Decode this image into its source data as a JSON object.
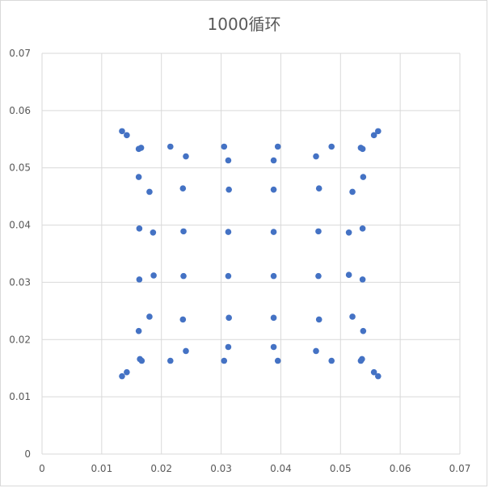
{
  "chart_data": {
    "type": "scatter",
    "title": "1000循环",
    "xlabel": "",
    "ylabel": "",
    "xlim": [
      0,
      0.07
    ],
    "ylim": [
      0,
      0.07
    ],
    "x_ticks": [
      "0",
      "0.01",
      "0.02",
      "0.03",
      "0.04",
      "0.05",
      "0.06",
      "0.07"
    ],
    "y_ticks": [
      "0",
      "0.01",
      "0.02",
      "0.03",
      "0.04",
      "0.05",
      "0.06",
      "0.07"
    ],
    "grid": true,
    "legend": "none",
    "marker_color": "#4472c4",
    "points": [
      [
        0.0134,
        0.0564
      ],
      [
        0.0142,
        0.0557
      ],
      [
        0.0162,
        0.0533
      ],
      [
        0.0166,
        0.0535
      ],
      [
        0.0215,
        0.0537
      ],
      [
        0.0241,
        0.052
      ],
      [
        0.0305,
        0.0537
      ],
      [
        0.0312,
        0.0513
      ],
      [
        0.0388,
        0.0513
      ],
      [
        0.0395,
        0.0537
      ],
      [
        0.0459,
        0.052
      ],
      [
        0.0485,
        0.0537
      ],
      [
        0.0534,
        0.0535
      ],
      [
        0.0537,
        0.0533
      ],
      [
        0.0556,
        0.0557
      ],
      [
        0.0563,
        0.0564
      ],
      [
        0.0162,
        0.0484
      ],
      [
        0.018,
        0.0458
      ],
      [
        0.0236,
        0.0464
      ],
      [
        0.0313,
        0.0462
      ],
      [
        0.0388,
        0.0462
      ],
      [
        0.0464,
        0.0464
      ],
      [
        0.052,
        0.0458
      ],
      [
        0.0538,
        0.0484
      ],
      [
        0.0163,
        0.0394
      ],
      [
        0.0186,
        0.0387
      ],
      [
        0.0237,
        0.0389
      ],
      [
        0.0312,
        0.0388
      ],
      [
        0.0388,
        0.0388
      ],
      [
        0.0463,
        0.0389
      ],
      [
        0.0514,
        0.0387
      ],
      [
        0.0537,
        0.0394
      ],
      [
        0.0163,
        0.0305
      ],
      [
        0.0187,
        0.0312
      ],
      [
        0.0237,
        0.0311
      ],
      [
        0.0312,
        0.0311
      ],
      [
        0.0388,
        0.0311
      ],
      [
        0.0463,
        0.0311
      ],
      [
        0.0514,
        0.0313
      ],
      [
        0.0537,
        0.0305
      ],
      [
        0.0162,
        0.0215
      ],
      [
        0.018,
        0.024
      ],
      [
        0.0236,
        0.0235
      ],
      [
        0.0313,
        0.0238
      ],
      [
        0.0388,
        0.0238
      ],
      [
        0.0464,
        0.0235
      ],
      [
        0.052,
        0.024
      ],
      [
        0.0538,
        0.0215
      ],
      [
        0.0164,
        0.0166
      ],
      [
        0.0167,
        0.0163
      ],
      [
        0.0215,
        0.0163
      ],
      [
        0.0241,
        0.018
      ],
      [
        0.0305,
        0.0163
      ],
      [
        0.0312,
        0.0187
      ],
      [
        0.0388,
        0.0187
      ],
      [
        0.0395,
        0.0163
      ],
      [
        0.0459,
        0.018
      ],
      [
        0.0485,
        0.0163
      ],
      [
        0.0534,
        0.0163
      ],
      [
        0.0536,
        0.0166
      ],
      [
        0.0134,
        0.0136
      ],
      [
        0.0142,
        0.0143
      ],
      [
        0.0556,
        0.0143
      ],
      [
        0.0563,
        0.0136
      ]
    ]
  }
}
